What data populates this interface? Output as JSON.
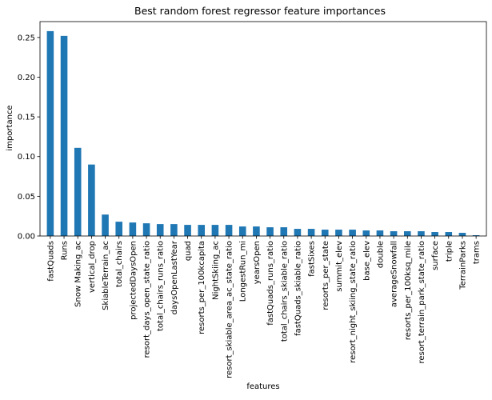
{
  "chart_data": {
    "type": "bar",
    "title": "Best random forest regressor feature importances",
    "xlabel": "features",
    "ylabel": "importance",
    "ylim": [
      0,
      0.27
    ],
    "yticks": [
      0.0,
      0.05,
      0.1,
      0.15,
      0.2,
      0.25
    ],
    "ytick_labels": [
      "0.00",
      "0.05",
      "0.10",
      "0.15",
      "0.20",
      "0.25"
    ],
    "grid": false,
    "legend": "none",
    "bar_color": "#1f77b4",
    "categories": [
      "fastQuads",
      "Runs",
      "Snow Making_ac",
      "vertical_drop",
      "SkiableTerrain_ac",
      "total_chairs",
      "projectedDaysOpen",
      "resort_days_open_state_ratio",
      "total_chairs_runs_ratio",
      "daysOpenLastYear",
      "quad",
      "resorts_per_100kcapita",
      "NightSkiing_ac",
      "resort_skiable_area_ac_state_ratio",
      "LongestRun_mi",
      "yearsOpen",
      "fastQuads_runs_ratio",
      "total_chairs_skiable_ratio",
      "fastQuads_skiable_ratio",
      "fastSixes",
      "resorts_per_state",
      "summit_elev",
      "resort_night_skiing_state_ratio",
      "base_elev",
      "double",
      "averageSnowfall",
      "resorts_per_100ksq_mile",
      "resort_terrain_park_state_ratio",
      "surface",
      "triple",
      "TerrainParks",
      "trams"
    ],
    "values": [
      0.258,
      0.252,
      0.111,
      0.09,
      0.027,
      0.018,
      0.017,
      0.016,
      0.015,
      0.015,
      0.014,
      0.014,
      0.014,
      0.014,
      0.012,
      0.012,
      0.011,
      0.011,
      0.009,
      0.009,
      0.008,
      0.008,
      0.008,
      0.007,
      0.007,
      0.006,
      0.006,
      0.006,
      0.005,
      0.005,
      0.004,
      0.001
    ]
  }
}
